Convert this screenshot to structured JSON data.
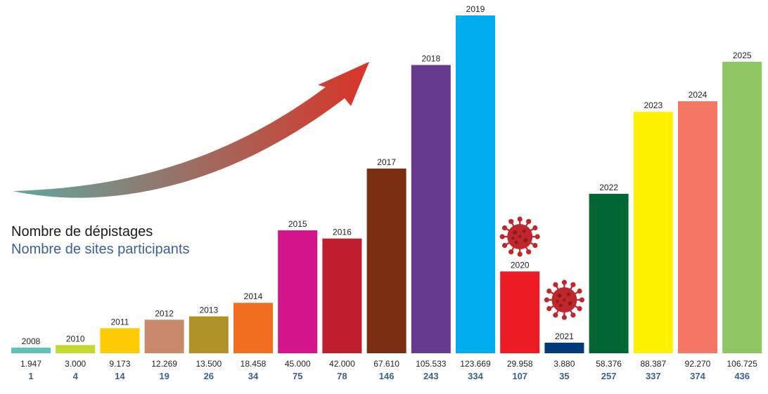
{
  "legend": {
    "screenings_label": "Nombre de dépistages",
    "sites_label": "Nombre de sites participants"
  },
  "colors": {
    "sites_text": "#3d5f91",
    "arrow_start": "#5fa8a0",
    "arrow_end": "#d93427",
    "virus": "#c0272d"
  },
  "icons": [
    "virus-icon-2020",
    "virus-icon-2021"
  ],
  "chart_data": {
    "type": "bar",
    "categories": [
      "2008",
      "2010",
      "2011",
      "2012",
      "2013",
      "2014",
      "2015",
      "2016",
      "2017",
      "2018",
      "2019",
      "2020",
      "2021",
      "2022",
      "2023",
      "2024",
      "2025"
    ],
    "values": [
      1947,
      3000,
      9173,
      12269,
      13500,
      18458,
      45000,
      42000,
      67610,
      105533,
      123669,
      29958,
      3880,
      58376,
      88387,
      92270,
      106725
    ],
    "value_labels": [
      "1.947",
      "3.000",
      "9.173",
      "12.269",
      "13.500",
      "18.458",
      "45.000",
      "42.000",
      "67.610",
      "105.533",
      "123.669",
      "29.958",
      "3.880",
      "58.376",
      "88.387",
      "92.270",
      "106.725"
    ],
    "sites": [
      "1",
      "4",
      "14",
      "19",
      "26",
      "34",
      "75",
      "78",
      "146",
      "243",
      "334",
      "107",
      "35",
      "257",
      "337",
      "374",
      "436"
    ],
    "bar_colors": [
      "#5cc4b8",
      "#c4d92b",
      "#ffcb05",
      "#c98a6c",
      "#b09328",
      "#f26f21",
      "#d4148a",
      "#be1e2d",
      "#7a2e12",
      "#663a8c",
      "#00aeef",
      "#ed1c24",
      "#003a78",
      "#006633",
      "#fff200",
      "#f47665",
      "#8dc663"
    ],
    "ylim": [
      0,
      123669
    ],
    "title": "",
    "xlabel": "",
    "ylabel": ""
  }
}
